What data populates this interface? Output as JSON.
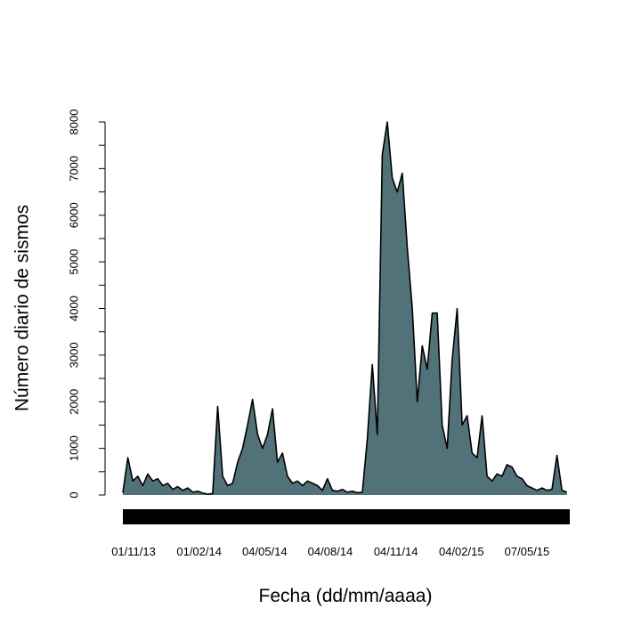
{
  "chart_data": {
    "type": "area",
    "x_label": "Fecha (dd/mm/aaaa)",
    "y_label": "Número diario de sismos",
    "color": "#52727a",
    "line_color": "#000000",
    "xlim": [
      "17/10/13",
      "06/07/15"
    ],
    "xticks": [
      "01/11/13",
      "01/02/14",
      "04/05/14",
      "04/08/14",
      "04/11/14",
      "04/02/15",
      "07/05/15"
    ],
    "ylim": [
      0,
      8000
    ],
    "yticks": [
      0,
      1000,
      2000,
      3000,
      4000,
      5000,
      6000,
      7000,
      8000
    ],
    "yminorticks": [
      500,
      1500,
      2500,
      3500,
      4500,
      5500,
      6500,
      7500
    ],
    "x": [
      "17/10/13",
      "24/10/13",
      "31/10/13",
      "07/11/13",
      "14/11/13",
      "21/11/13",
      "28/11/13",
      "05/12/13",
      "12/12/13",
      "19/12/13",
      "26/12/13",
      "02/01/14",
      "09/01/14",
      "16/01/14",
      "23/01/14",
      "30/01/14",
      "06/02/14",
      "13/02/14",
      "20/02/14",
      "27/02/14",
      "06/03/14",
      "13/03/14",
      "20/03/14",
      "27/03/14",
      "03/04/14",
      "10/04/14",
      "17/04/14",
      "24/04/14",
      "01/05/14",
      "08/05/14",
      "15/05/14",
      "22/05/14",
      "29/05/14",
      "05/06/14",
      "12/06/14",
      "19/06/14",
      "26/06/14",
      "03/07/14",
      "10/07/14",
      "17/07/14",
      "24/07/14",
      "31/07/14",
      "07/08/14",
      "14/08/14",
      "21/08/14",
      "28/08/14",
      "04/09/14",
      "11/09/14",
      "18/09/14",
      "25/09/14",
      "02/10/14",
      "09/10/14",
      "16/10/14",
      "23/10/14",
      "30/10/14",
      "06/11/14",
      "13/11/14",
      "20/11/14",
      "27/11/14",
      "04/12/14",
      "11/12/14",
      "18/12/14",
      "25/12/14",
      "01/01/15",
      "08/01/15",
      "15/01/15",
      "22/01/15",
      "29/01/15",
      "05/02/15",
      "12/02/15",
      "19/02/15",
      "26/02/15",
      "05/03/15",
      "12/03/15",
      "19/03/15",
      "26/03/15",
      "02/04/15",
      "09/04/15",
      "16/04/15",
      "23/04/15",
      "30/04/15",
      "07/05/15",
      "14/05/15",
      "21/05/15",
      "28/05/15",
      "04/06/15",
      "11/06/15",
      "18/06/15",
      "25/06/15",
      "02/07/15"
    ],
    "values": [
      50,
      800,
      300,
      400,
      200,
      450,
      300,
      350,
      200,
      250,
      120,
      180,
      100,
      150,
      60,
      80,
      40,
      20,
      30,
      1900,
      400,
      200,
      250,
      700,
      1000,
      1500,
      2050,
      1300,
      1000,
      1300,
      1850,
      700,
      900,
      400,
      250,
      300,
      200,
      300,
      250,
      200,
      100,
      350,
      100,
      80,
      120,
      60,
      80,
      50,
      60,
      1200,
      2800,
      1300,
      7300,
      8000,
      6800,
      6500,
      6900,
      5300,
      4000,
      2000,
      3200,
      2700,
      3900,
      3900,
      1500,
      1000,
      2900,
      4000,
      1500,
      1700,
      900,
      800,
      1700,
      400,
      300,
      450,
      400,
      650,
      600,
      400,
      350,
      200,
      150,
      100,
      150,
      100,
      120,
      850,
      100,
      60
    ]
  }
}
